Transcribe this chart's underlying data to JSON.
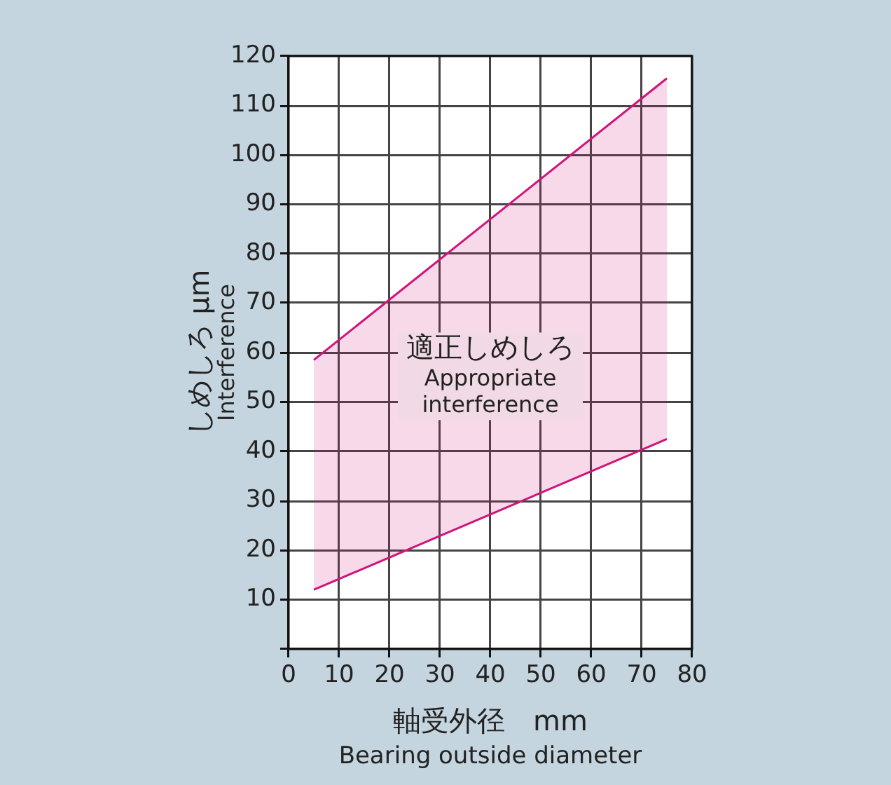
{
  "chart_data": {
    "type": "line",
    "xlabel": "軸受外径　mm\nBearing outside diameter",
    "ylabel": "しめしろ μm\nInterference",
    "xlim": [
      0,
      80
    ],
    "xticks": [
      0,
      10,
      20,
      30,
      40,
      50,
      60,
      70,
      80
    ],
    "ylim": [
      0,
      120
    ],
    "yticks": [
      {
        "value": 0,
        "label": null
      },
      10,
      20,
      30,
      40,
      50,
      60,
      70,
      80,
      90,
      100,
      110,
      120
    ],
    "grid": true,
    "legend": false,
    "marker": "none",
    "line_style": "solid",
    "series": [
      {
        "color": "#d0147a",
        "values": [
          58.5,
          115.5
        ],
        "lower": [
          12,
          42.5
        ],
        "upper": [
          58.5,
          115.5
        ]
      },
      {
        "color": "#d0147a",
        "values": [
          12,
          42.5
        ]
      }
    ],
    "x": [
      5,
      75
    ],
    "annotations": [
      "適正しめしろ\nAppropriate\ninterference"
    ]
  }
}
